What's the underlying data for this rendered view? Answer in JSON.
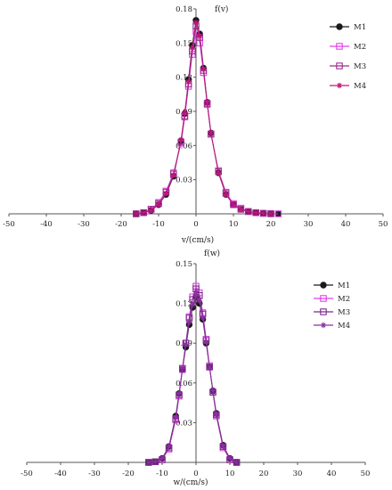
{
  "chart_data": [
    {
      "type": "scatter",
      "title": "",
      "xlabel": "v/(cm/s)",
      "ylabel": "f(v)",
      "xlim": [
        -50,
        50
      ],
      "ylim": [
        0,
        0.18
      ],
      "x_ticks": [
        "-50",
        "-40",
        "-30",
        "-20",
        "-10",
        "0",
        "10",
        "20",
        "30",
        "40",
        "50"
      ],
      "y_ticks": [
        "0.03",
        "0.06",
        "0.09",
        "0.12",
        "0.15",
        "0.18"
      ],
      "legend_position": "top-right",
      "series": [
        {
          "name": "M1",
          "marker": "filled-circle",
          "color": "#1a1a1a",
          "x": [
            -16,
            -14,
            -12,
            -10,
            -8,
            -6,
            -4,
            -3,
            -2,
            -1,
            0,
            1,
            2,
            3,
            4,
            6,
            8,
            10,
            12,
            14,
            16,
            18,
            20,
            22
          ],
          "y": [
            0.0,
            0.001,
            0.003,
            0.008,
            0.017,
            0.033,
            0.064,
            0.088,
            0.118,
            0.148,
            0.17,
            0.158,
            0.128,
            0.098,
            0.071,
            0.036,
            0.017,
            0.008,
            0.004,
            0.002,
            0.001,
            0.0005,
            0.0002,
            0.0
          ]
        },
        {
          "name": "M2",
          "marker": "open-square",
          "color": "#e040e8",
          "x": [
            -16,
            -14,
            -12,
            -10,
            -8,
            -6,
            -4,
            -3,
            -2,
            -1,
            0,
            1,
            2,
            3,
            4,
            6,
            8,
            10,
            12,
            14,
            16,
            18,
            20,
            22
          ],
          "y": [
            0.0,
            0.001,
            0.004,
            0.01,
            0.02,
            0.036,
            0.062,
            0.085,
            0.112,
            0.14,
            0.16,
            0.15,
            0.124,
            0.096,
            0.07,
            0.038,
            0.019,
            0.009,
            0.005,
            0.002,
            0.001,
            0.0005,
            0.0002,
            0.0
          ]
        },
        {
          "name": "M3",
          "marker": "open-square",
          "color": "#9b2d8f",
          "x": [
            -16,
            -14,
            -12,
            -10,
            -8,
            -6,
            -4,
            -3,
            -2,
            -1,
            0,
            1,
            2,
            3,
            4,
            6,
            8,
            10,
            12,
            14,
            16,
            18,
            20
          ],
          "y": [
            0.0,
            0.001,
            0.004,
            0.009,
            0.019,
            0.035,
            0.063,
            0.086,
            0.114,
            0.143,
            0.165,
            0.155,
            0.126,
            0.097,
            0.07,
            0.037,
            0.018,
            0.008,
            0.004,
            0.002,
            0.001,
            0.0004,
            0.0
          ]
        },
        {
          "name": "M4",
          "marker": "star",
          "color": "#c0147a",
          "x": [
            -16,
            -14,
            -12,
            -10,
            -8,
            -6,
            -4,
            -3,
            -2,
            -1,
            0,
            1,
            2,
            3,
            4,
            6,
            8,
            10,
            12,
            14,
            16,
            18,
            20
          ],
          "y": [
            0.0,
            0.001,
            0.003,
            0.008,
            0.018,
            0.034,
            0.065,
            0.089,
            0.116,
            0.146,
            0.168,
            0.156,
            0.127,
            0.097,
            0.071,
            0.036,
            0.017,
            0.008,
            0.004,
            0.002,
            0.001,
            0.0004,
            0.0
          ]
        }
      ]
    },
    {
      "type": "scatter",
      "title": "",
      "xlabel": "w/(cm/s)",
      "ylabel": "f(w)",
      "xlim": [
        -50,
        50
      ],
      "ylim": [
        0,
        0.15
      ],
      "x_ticks": [
        "-50",
        "-40",
        "-30",
        "-20",
        "-10",
        "0",
        "10",
        "20",
        "30",
        "40",
        "50"
      ],
      "y_ticks": [
        "0.03",
        "0.06",
        "0.09",
        "0.12",
        "0.15"
      ],
      "legend_position": "top-right",
      "series": [
        {
          "name": "M1",
          "marker": "filled-circle",
          "color": "#1a1a1a",
          "x": [
            -14,
            -12,
            -10,
            -8,
            -6,
            -5,
            -4,
            -3,
            -2,
            -1,
            0,
            1,
            2,
            3,
            4,
            5,
            6,
            8,
            10,
            12
          ],
          "y": [
            0.0,
            0.0005,
            0.003,
            0.012,
            0.035,
            0.052,
            0.07,
            0.087,
            0.104,
            0.117,
            0.125,
            0.12,
            0.108,
            0.09,
            0.072,
            0.054,
            0.037,
            0.013,
            0.003,
            0.0
          ]
        },
        {
          "name": "M2",
          "marker": "open-square",
          "color": "#e040e8",
          "x": [
            -14,
            -12,
            -10,
            -8,
            -6,
            -5,
            -4,
            -3,
            -2,
            -1,
            0,
            1,
            2,
            3,
            4,
            5,
            6,
            8,
            10,
            12
          ],
          "y": [
            0.0,
            0.0005,
            0.002,
            0.01,
            0.032,
            0.05,
            0.07,
            0.09,
            0.11,
            0.125,
            0.133,
            0.128,
            0.113,
            0.093,
            0.073,
            0.053,
            0.035,
            0.011,
            0.002,
            0.0
          ]
        },
        {
          "name": "M3",
          "marker": "open-square",
          "color": "#7a2a8a",
          "x": [
            -14,
            -12,
            -10,
            -8,
            -6,
            -5,
            -4,
            -3,
            -2,
            -1,
            0,
            1,
            2,
            3,
            4,
            5,
            6,
            8,
            10,
            12
          ],
          "y": [
            0.0,
            0.0005,
            0.002,
            0.011,
            0.033,
            0.051,
            0.071,
            0.09,
            0.109,
            0.123,
            0.131,
            0.126,
            0.112,
            0.092,
            0.072,
            0.053,
            0.036,
            0.012,
            0.002,
            0.0
          ]
        },
        {
          "name": "M4",
          "marker": "star",
          "color": "#8a2fa0",
          "x": [
            -14,
            -12,
            -10,
            -8,
            -6,
            -5,
            -4,
            -3,
            -2,
            -1,
            0,
            1,
            2,
            3,
            4,
            5,
            6,
            8,
            10,
            12
          ],
          "y": [
            0.0,
            0.0005,
            0.003,
            0.012,
            0.034,
            0.052,
            0.071,
            0.089,
            0.106,
            0.119,
            0.127,
            0.122,
            0.109,
            0.091,
            0.072,
            0.054,
            0.036,
            0.012,
            0.003,
            0.0
          ]
        }
      ]
    }
  ]
}
